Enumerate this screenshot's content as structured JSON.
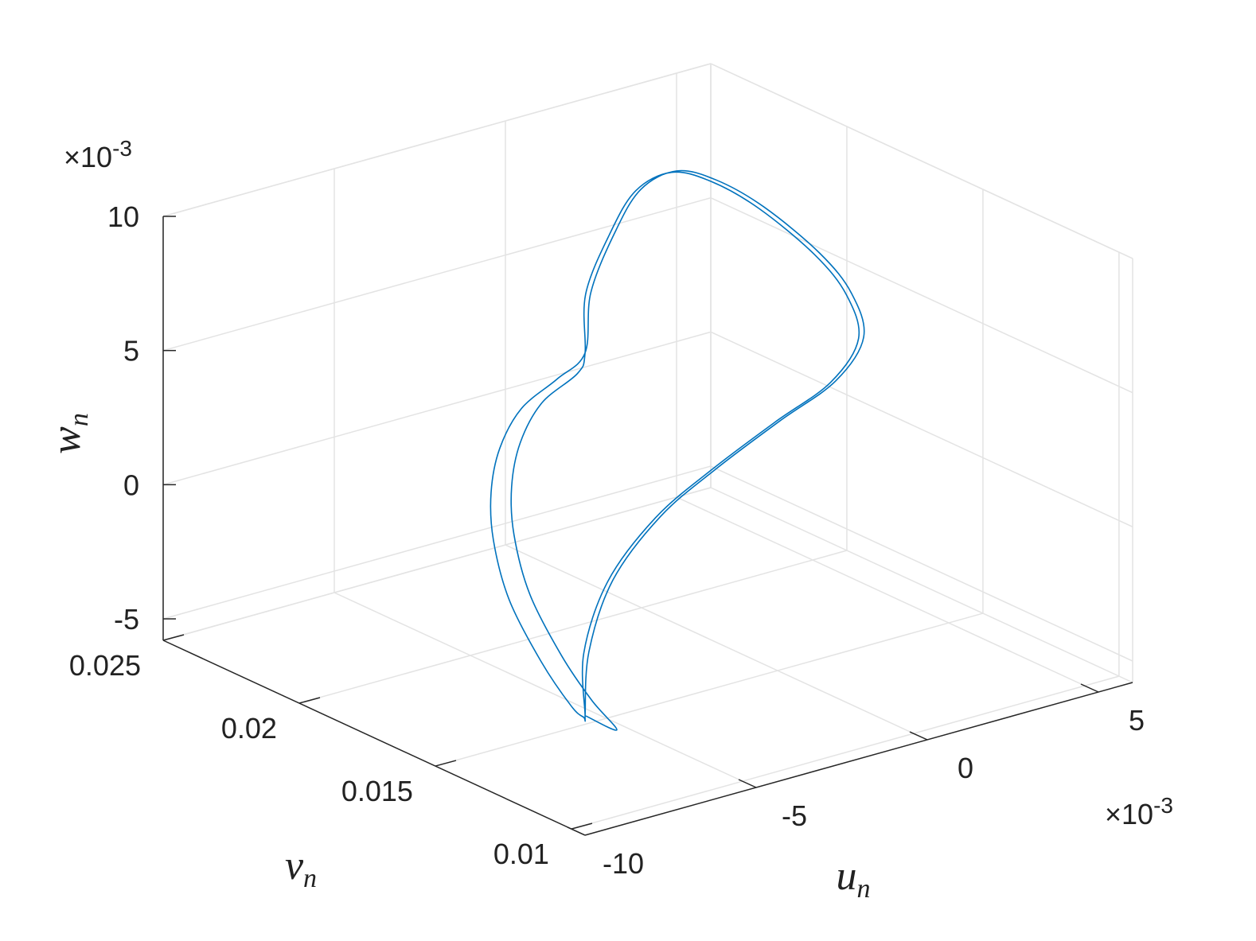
{
  "chart_data": {
    "type": "line3d",
    "series": [
      {
        "color": "#0072bd",
        "x": [
          -0.00801,
          -0.00696,
          -0.00521,
          -0.00288,
          -0.00055,
          0.00201,
          0.00422,
          0.00568,
          0.00597,
          0.00563,
          0.00468,
          0.00368,
          0.00265,
          0.00133,
          -8e-05,
          -0.00165,
          -0.00269,
          -0.0039,
          -0.00537,
          -0.00659,
          -0.00748,
          -0.00812,
          -0.00853,
          -0.0085,
          -0.00827,
          -0.00808,
          -0.00801,
          -0.00711,
          -0.00536,
          -0.00303,
          -0.0007,
          0.00186,
          0.00407,
          0.00553,
          0.00582,
          0.00548,
          0.00453,
          0.00353,
          0.0025,
          0.00118,
          -0.00023,
          -0.0018,
          -0.00269,
          -0.0033,
          -0.00477,
          -0.00599,
          -0.00688,
          -0.00752,
          -0.00793,
          -0.0079,
          -0.00767,
          -0.00729,
          -0.00801
        ],
        "y": [
          0.012,
          0.01318,
          0.0145,
          0.01568,
          0.01656,
          0.01744,
          0.01817,
          0.01898,
          0.01979,
          0.02053,
          0.02138,
          0.02188,
          0.02204,
          0.0217,
          0.02089,
          0.01979,
          0.01869,
          0.0182,
          0.01766,
          0.01692,
          0.01612,
          0.01523,
          0.01413,
          0.013,
          0.01218,
          0.01197,
          0.012,
          0.01318,
          0.0145,
          0.01568,
          0.01656,
          0.01744,
          0.01817,
          0.01898,
          0.01979,
          0.02053,
          0.02138,
          0.02188,
          0.02204,
          0.0217,
          0.02089,
          0.01979,
          0.01869,
          0.0182,
          0.01766,
          0.01692,
          0.01612,
          0.01523,
          0.01413,
          0.013,
          0.01218,
          0.01174,
          0.012
        ],
        "z": [
          -0.00322,
          -0.00177,
          -0.00034,
          0.00065,
          0.00119,
          0.00165,
          0.00201,
          0.00274,
          0.00389,
          0.00516,
          0.00682,
          0.00795,
          0.00858,
          0.00852,
          0.00777,
          0.00662,
          0.00527,
          0.00495,
          0.00463,
          0.00393,
          0.00298,
          0.00184,
          0.00027,
          -0.0015,
          -0.00286,
          -0.00324,
          -0.00322,
          -0.00177,
          -0.00034,
          0.00065,
          0.00119,
          0.00165,
          0.00201,
          0.00274,
          0.00389,
          0.00516,
          0.00682,
          0.00795,
          0.00858,
          0.00852,
          0.00777,
          0.00662,
          0.00527,
          0.00495,
          0.00463,
          0.00393,
          0.00298,
          0.00184,
          0.00027,
          -0.0015,
          -0.00286,
          -0.00389,
          -0.00322
        ]
      }
    ],
    "xlim": [
      -0.01,
      0.006
    ],
    "ylim": [
      0.0095,
      0.025
    ],
    "zlim": [
      -0.0058,
      0.01
    ],
    "xticks": [
      {
        "value": -0.01,
        "label": "-10"
      },
      {
        "value": -0.005,
        "label": "-5"
      },
      {
        "value": 0,
        "label": "0"
      },
      {
        "value": 0.005,
        "label": "5"
      }
    ],
    "yticks": [
      0.01,
      0.015,
      0.02,
      0.025
    ],
    "zticks": [
      {
        "value": -0.005,
        "label": "-5"
      },
      {
        "value": 0,
        "label": "0"
      },
      {
        "value": 0.005,
        "label": "5"
      },
      {
        "value": 0.01,
        "label": "10"
      }
    ],
    "x_multiplier": {
      "base": "×10",
      "exponent": "-3"
    },
    "z_multiplier": {
      "base": "×10",
      "exponent": "-3"
    },
    "xlabel": {
      "symbol": "u",
      "subscript": "n"
    },
    "ylabel": {
      "symbol": "v",
      "subscript": "n"
    },
    "zlabel": {
      "symbol": "w",
      "subscript": "n"
    },
    "grid": true
  }
}
